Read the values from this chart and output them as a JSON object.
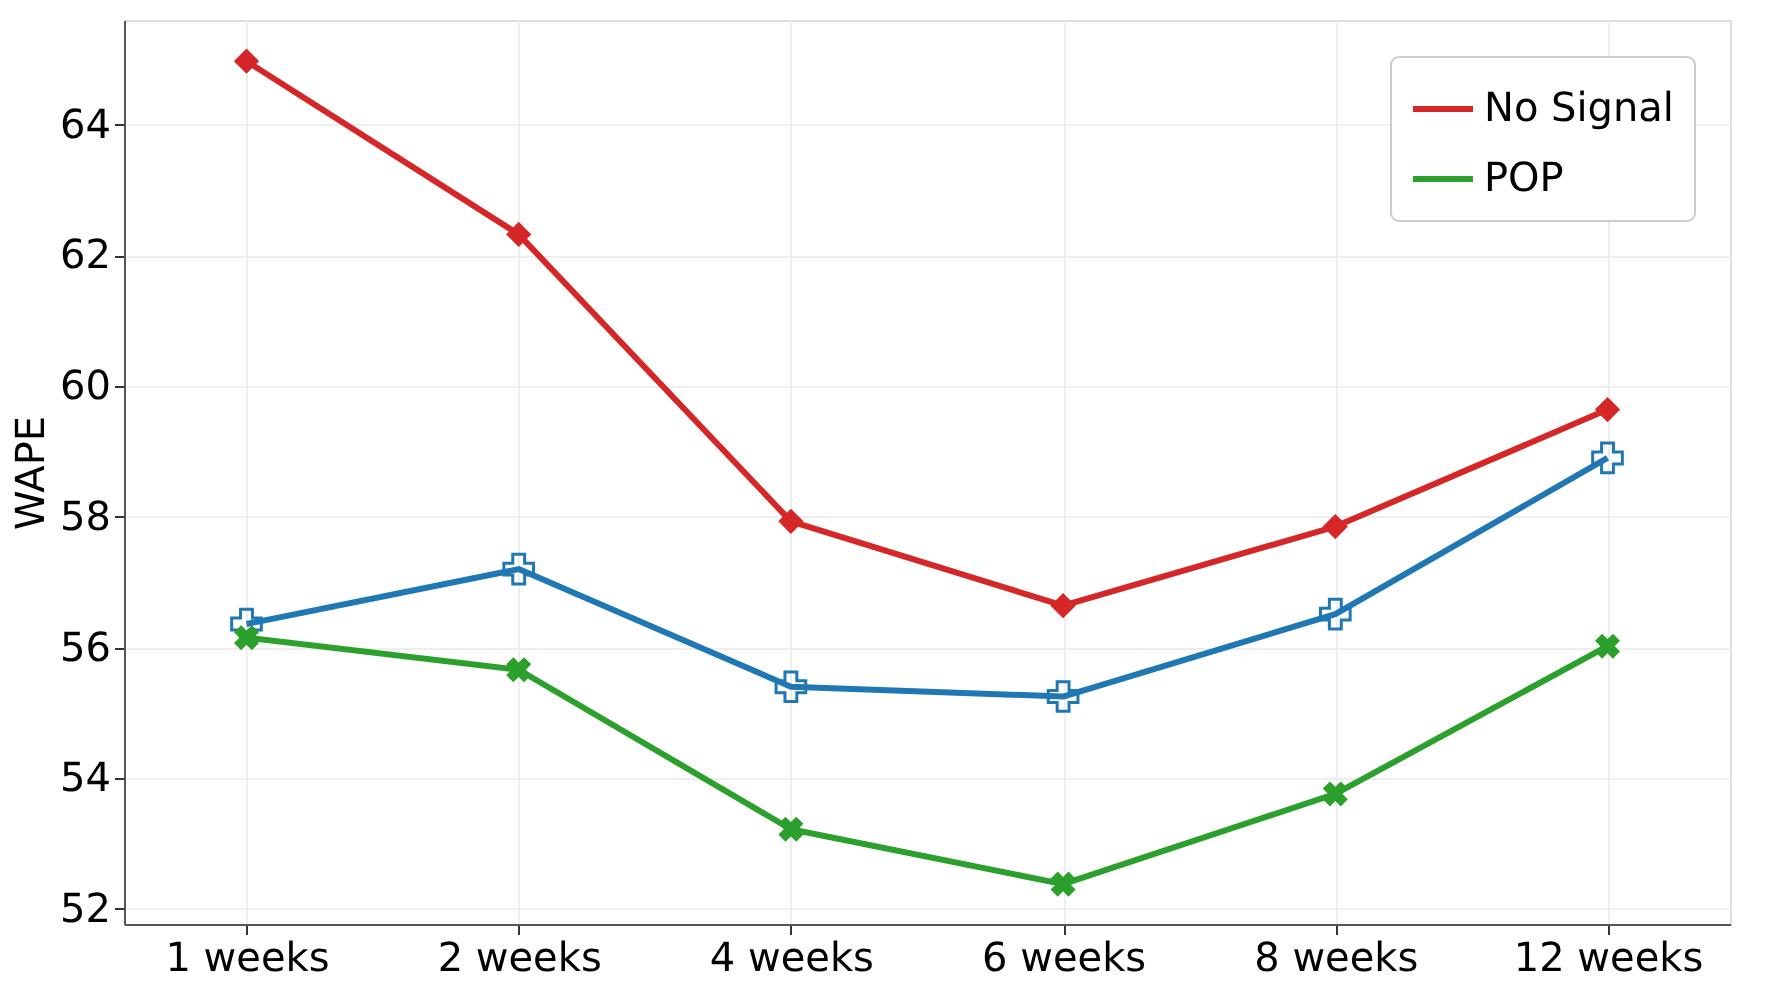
{
  "chart_data": {
    "type": "line",
    "ylabel": "WAPE",
    "categories": [
      "1 weeks",
      "2 weeks",
      "4 weeks",
      "6 weeks",
      "8 weeks",
      "12 weeks"
    ],
    "series": [
      {
        "name": "No Signal",
        "color": "#d62728",
        "marker": "diamond",
        "values": [
          64.97,
          62.32,
          57.93,
          56.64,
          57.85,
          59.64
        ]
      },
      {
        "color": "#1f77b4",
        "marker": "cross",
        "values": [
          56.36,
          57.2,
          55.4,
          55.25,
          56.51,
          58.9
        ]
      },
      {
        "name": "POP",
        "color": "#2ca02c",
        "marker": "x",
        "values": [
          56.15,
          55.66,
          53.22,
          52.38,
          53.76,
          56.02
        ]
      }
    ],
    "ylim": [
      51.77,
      65.6
    ],
    "yticks": [
      52,
      54,
      56,
      58,
      60,
      62,
      64
    ],
    "grid": true,
    "legend": "top right",
    "line_style": "solid"
  }
}
